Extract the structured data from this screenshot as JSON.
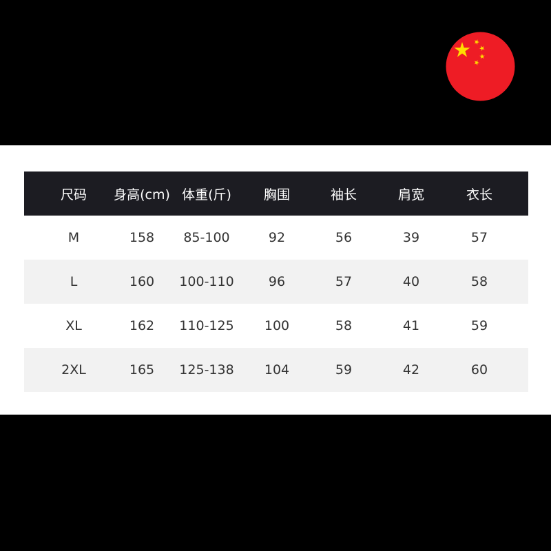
{
  "flag": {
    "icon": "china-flag-icon",
    "red": "#ee1c25",
    "star": "#ffde00"
  },
  "table": {
    "headers": [
      "尺码",
      "身高(cm)",
      "体重(斤)",
      "胸围",
      "袖长",
      "肩宽",
      "衣长"
    ],
    "rows": [
      [
        "M",
        "158",
        "85-100",
        "92",
        "56",
        "39",
        "57"
      ],
      [
        "L",
        "160",
        "100-110",
        "96",
        "57",
        "40",
        "58"
      ],
      [
        "XL",
        "162",
        "110-125",
        "100",
        "58",
        "41",
        "59"
      ],
      [
        "2XL",
        "165",
        "125-138",
        "104",
        "59",
        "42",
        "60"
      ]
    ]
  }
}
